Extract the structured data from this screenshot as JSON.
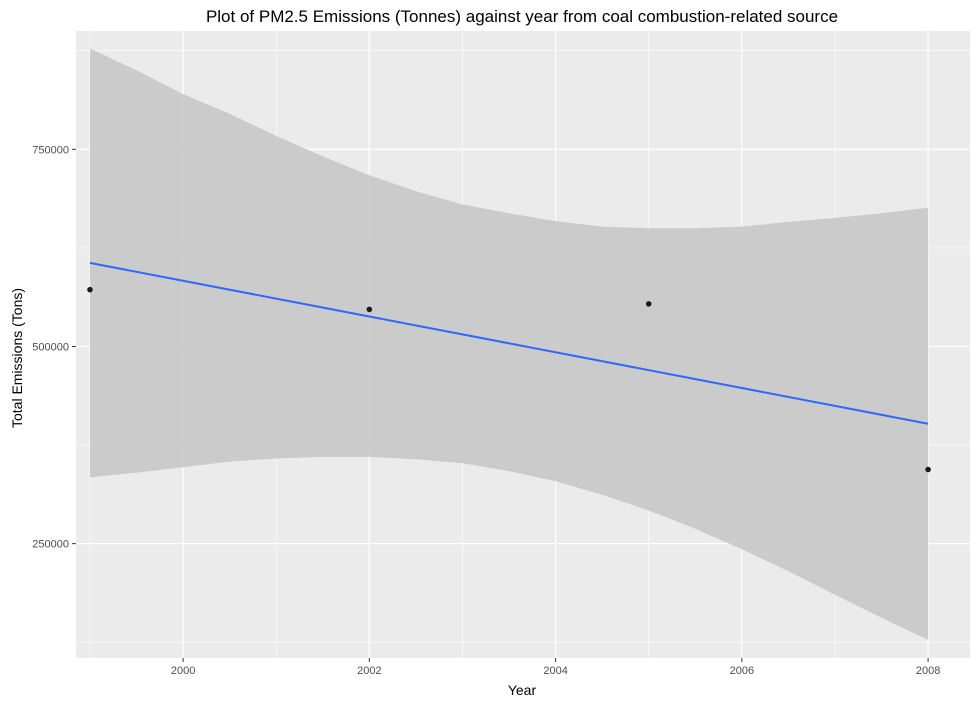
{
  "chart_data": {
    "type": "scatter",
    "title": "Plot of PM2.5 Emissions (Tonnes) against year from coal combustion-related source",
    "xlabel": "Year",
    "ylabel": "Total Emissions (Tons)",
    "xlim": [
      1998.85,
      2008.45
    ],
    "ylim": [
      105000,
      900000
    ],
    "x_ticks": [
      2000,
      2002,
      2004,
      2006,
      2008
    ],
    "x_tick_labels": [
      "2000",
      "2002",
      "2004",
      "2006",
      "2008"
    ],
    "y_ticks": [
      250000,
      500000,
      750000
    ],
    "y_tick_labels": [
      "250000",
      "500000",
      "750000"
    ],
    "grid": true,
    "points": {
      "x": [
        1999,
        2002,
        2005,
        2008
      ],
      "y": [
        572000,
        547000,
        554000,
        344000
      ]
    },
    "trend": {
      "method": "linear",
      "x": [
        1999,
        2008
      ],
      "y": [
        606000,
        402000
      ]
    },
    "confidence_band": {
      "x": [
        1999,
        1999.5,
        2000,
        2000.5,
        2001,
        2001.5,
        2002,
        2002.5,
        2003,
        2003.5,
        2004,
        2004.5,
        2005,
        2005.5,
        2006,
        2006.5,
        2007,
        2007.5,
        2008
      ],
      "upper": [
        878000,
        850000,
        820000,
        795000,
        767000,
        741000,
        717000,
        697000,
        680000,
        669000,
        659000,
        652000,
        650000,
        650000,
        652000,
        658000,
        663000,
        669000,
        676000
      ],
      "lower": [
        334000,
        340000,
        347000,
        354000,
        358000,
        360000,
        360000,
        357000,
        352000,
        342000,
        329000,
        312000,
        292000,
        269000,
        243000,
        215000,
        185000,
        156000,
        128000
      ]
    },
    "colors": {
      "panel": "#ebebeb",
      "grid": "#ffffff",
      "band": "#c9c9c9",
      "line": "#3366ff",
      "point": "#1a1a1a"
    }
  }
}
